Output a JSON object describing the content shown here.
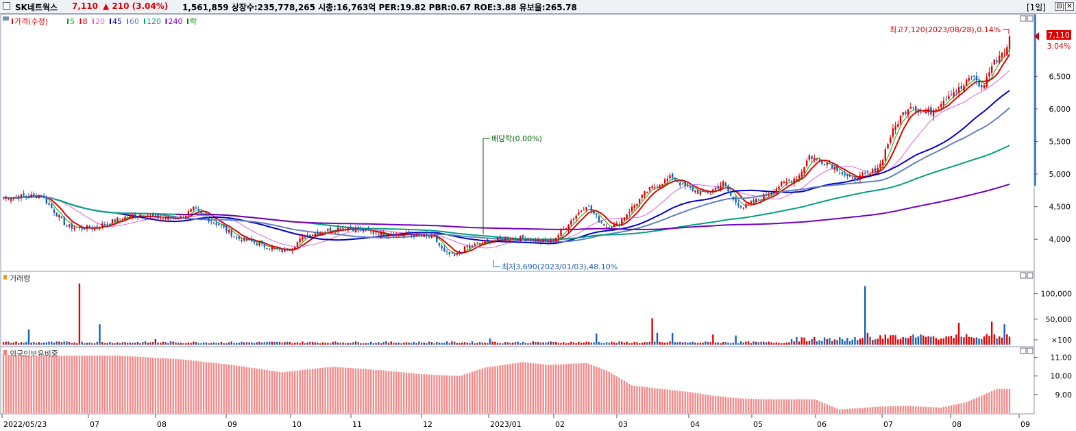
{
  "header": {
    "stock_name": "SK네트웍스",
    "price": "7,110",
    "change": "▲ 210 (3.04%)",
    "info": "1,561,859  상장수:235,778,265  시총:16,763억  PER:19.82  PBR:0.67  ROE:3.88  유보율:265.78",
    "period": "[1일]",
    "btn_restore": "⊟",
    "btn_close": "✕"
  },
  "price_panel": {
    "legend": [
      {
        "label": "가격(수정)",
        "color": "#e00000"
      },
      {
        "label": "5",
        "color": "#00b000"
      },
      {
        "label": "8",
        "color": "#e00000"
      },
      {
        "label": "20",
        "color": "#e060e0"
      },
      {
        "label": "45",
        "color": "#0000cc"
      },
      {
        "label": "60",
        "color": "#6080c0"
      },
      {
        "label": "120",
        "color": "#00a080"
      },
      {
        "label": "240",
        "color": "#7000c0"
      },
      {
        "label": "락",
        "color": "#008000"
      }
    ],
    "y_ticks": [
      "6,500",
      "6,000",
      "5,500",
      "5,000",
      "4,500",
      "4,000"
    ],
    "high_annotation": "최고7,120(2023/08/28),0.14%",
    "low_annotation": "최저3,690(2023/01/03),48.10%",
    "dividend_annotation": "배당락(0.00%)",
    "current_price_tag": "7,110",
    "current_change_tag": "3.04%"
  },
  "volume_panel": {
    "title": "거래량",
    "y_ticks": [
      "100,000",
      "50,000",
      "×100"
    ]
  },
  "foreign_panel": {
    "title": "외국인보유비중",
    "y_ticks": [
      "11.00",
      "10.00",
      "9.00"
    ]
  },
  "x_axis": [
    "2022/05/23",
    "07",
    "08",
    "09",
    "10",
    "11",
    "12",
    "2023/01",
    "02",
    "03",
    "04",
    "05",
    "06",
    "07",
    "08",
    "09"
  ],
  "chart_data": {
    "type": "candlestick",
    "ylim": [
      3550,
      7250
    ],
    "close_anchors": [
      [
        0,
        4640
      ],
      [
        8,
        4660
      ],
      [
        15,
        4670
      ],
      [
        20,
        4430
      ],
      [
        25,
        4200
      ],
      [
        30,
        4170
      ],
      [
        36,
        4180
      ],
      [
        42,
        4260
      ],
      [
        48,
        4340
      ],
      [
        54,
        4380
      ],
      [
        60,
        4330
      ],
      [
        66,
        4320
      ],
      [
        70,
        4330
      ],
      [
        75,
        4460
      ],
      [
        80,
        4330
      ],
      [
        86,
        4200
      ],
      [
        92,
        4020
      ],
      [
        98,
        3960
      ],
      [
        104,
        3880
      ],
      [
        110,
        3820
      ],
      [
        114,
        3880
      ],
      [
        119,
        4060
      ],
      [
        124,
        4100
      ],
      [
        130,
        4160
      ],
      [
        136,
        4180
      ],
      [
        142,
        4130
      ],
      [
        148,
        4090
      ],
      [
        154,
        4080
      ],
      [
        160,
        4070
      ],
      [
        166,
        4050
      ],
      [
        170,
        4020
      ],
      [
        174,
        3790
      ],
      [
        178,
        3740
      ],
      [
        182,
        3860
      ],
      [
        188,
        3940
      ],
      [
        194,
        3990
      ],
      [
        200,
        4010
      ],
      [
        206,
        4020
      ],
      [
        212,
        3960
      ],
      [
        216,
        3960
      ],
      [
        220,
        4110
      ],
      [
        224,
        4290
      ],
      [
        230,
        4530
      ],
      [
        235,
        4290
      ],
      [
        238,
        4200
      ],
      [
        242,
        4220
      ],
      [
        248,
        4480
      ],
      [
        254,
        4740
      ],
      [
        260,
        4880
      ],
      [
        264,
        4960
      ],
      [
        268,
        4820
      ],
      [
        272,
        4760
      ],
      [
        276,
        4700
      ],
      [
        280,
        4760
      ],
      [
        284,
        4860
      ],
      [
        288,
        4600
      ],
      [
        292,
        4490
      ],
      [
        296,
        4570
      ],
      [
        302,
        4700
      ],
      [
        306,
        4820
      ],
      [
        310,
        4890
      ],
      [
        314,
        4980
      ],
      [
        318,
        5280
      ],
      [
        322,
        5200
      ],
      [
        326,
        5160
      ],
      [
        330,
        5050
      ],
      [
        334,
        4920
      ],
      [
        338,
        4950
      ],
      [
        342,
        5000
      ],
      [
        346,
        5150
      ],
      [
        350,
        5580
      ],
      [
        354,
        5880
      ],
      [
        358,
        6070
      ],
      [
        362,
        5950
      ],
      [
        366,
        5960
      ],
      [
        370,
        6110
      ],
      [
        374,
        6260
      ],
      [
        378,
        6310
      ],
      [
        382,
        6500
      ],
      [
        384,
        6440
      ],
      [
        386,
        6300
      ],
      [
        390,
        6660
      ],
      [
        394,
        6870
      ],
      [
        396,
        6910
      ],
      [
        397,
        7110
      ]
    ],
    "ma_windows": [
      5,
      8,
      20,
      45,
      60,
      120,
      240
    ],
    "bar_count": 398,
    "volume_unit": "×100",
    "volume_spikes": [
      [
        0.37,
        30000
      ],
      [
        1.36,
        40000
      ],
      [
        1.1,
        120000
      ],
      [
        2.16,
        11000
      ],
      [
        6.97,
        12000
      ],
      [
        8.47,
        22000
      ],
      [
        9.28,
        52000
      ],
      [
        9.34,
        23000
      ],
      [
        9.55,
        23000
      ],
      [
        10.15,
        20000
      ],
      [
        10.47,
        18000
      ],
      [
        12.33,
        115000
      ],
      [
        12.36,
        23000
      ],
      [
        13.66,
        43000
      ],
      [
        14.12,
        45000
      ],
      [
        14.3,
        40000
      ],
      [
        14.45,
        30000
      ],
      [
        14.51,
        33000
      ]
    ],
    "foreign_ratio_anchors": [
      [
        0,
        11.15
      ],
      [
        15,
        11.1
      ],
      [
        45,
        11.1
      ],
      [
        70,
        10.9
      ],
      [
        90,
        10.6
      ],
      [
        110,
        10.2
      ],
      [
        130,
        10.5
      ],
      [
        150,
        10.3
      ],
      [
        165,
        10.1
      ],
      [
        180,
        10.0
      ],
      [
        190,
        10.45
      ],
      [
        205,
        10.75
      ],
      [
        215,
        10.6
      ],
      [
        230,
        10.7
      ],
      [
        238,
        10.3
      ],
      [
        248,
        9.5
      ],
      [
        260,
        9.3
      ],
      [
        270,
        9.15
      ],
      [
        280,
        8.95
      ],
      [
        290,
        8.8
      ],
      [
        300,
        8.75
      ],
      [
        320,
        8.75
      ],
      [
        330,
        8.2
      ],
      [
        345,
        8.35
      ],
      [
        355,
        8.4
      ],
      [
        370,
        8.3
      ],
      [
        380,
        8.6
      ],
      [
        392,
        9.3
      ],
      [
        397,
        9.3
      ]
    ],
    "foreign_ylim": [
      8.0,
      11.5
    ]
  }
}
